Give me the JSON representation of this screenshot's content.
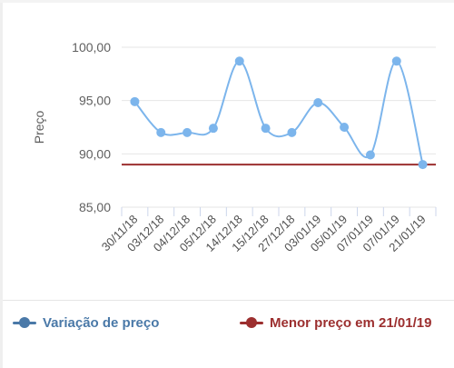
{
  "chart_data": {
    "type": "line",
    "ylabel": "Preço",
    "xlabel": "",
    "ylim": [
      85,
      100
    ],
    "yticks": [
      "85,00",
      "90,00",
      "95,00",
      "100,00"
    ],
    "ytick_values": [
      85,
      90,
      95,
      100
    ],
    "categories": [
      "30/11/18",
      "03/12/18",
      "04/12/18",
      "05/12/18",
      "14/12/18",
      "15/12/18",
      "27/12/18",
      "03/01/19",
      "05/01/19",
      "07/01/19",
      "07/01/19",
      "21/01/19"
    ],
    "series": [
      {
        "name": "Variação de preço",
        "color": "#7cb5ec",
        "values": [
          94.9,
          92.0,
          92.0,
          92.4,
          98.7,
          92.4,
          92.0,
          94.8,
          92.5,
          89.9,
          98.7,
          89.0
        ]
      }
    ],
    "reference_line": {
      "name": "Menor preço em 21/01/19",
      "value": 89.0,
      "color": "#9c2f2f"
    },
    "grid": true,
    "legend_position": "bottom"
  },
  "legend": {
    "series_label": "Variação de preço",
    "min_label": "Menor preço em 21/01/19",
    "series_color": "#4a79a8",
    "min_color": "#9c2f2f"
  }
}
